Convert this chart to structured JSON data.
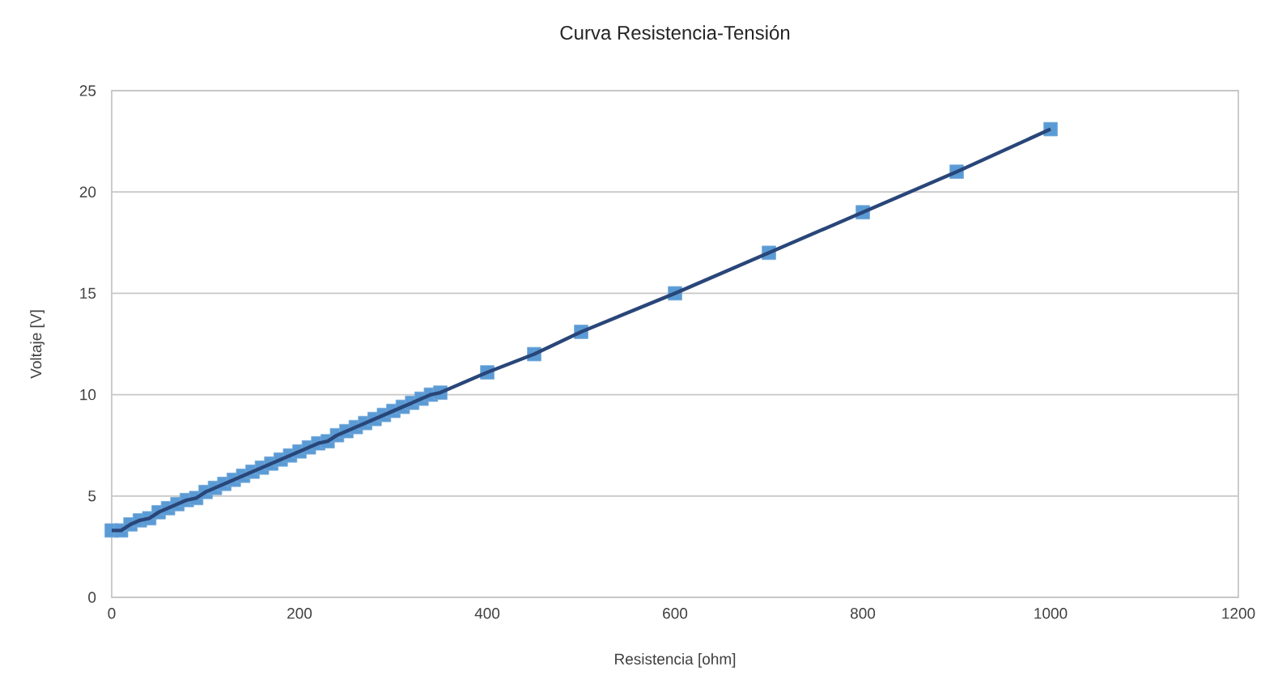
{
  "chart_data": {
    "type": "line",
    "title": "Curva Resistencia-Tensión",
    "xlabel": "Resistencia [ohm]",
    "ylabel": "Voltaje [V]",
    "x": [
      0,
      10,
      20,
      30,
      40,
      50,
      60,
      70,
      80,
      90,
      100,
      110,
      120,
      130,
      140,
      150,
      160,
      170,
      180,
      190,
      200,
      210,
      220,
      230,
      240,
      250,
      260,
      270,
      280,
      290,
      300,
      310,
      320,
      330,
      340,
      350,
      400,
      450,
      500,
      600,
      700,
      800,
      900,
      1000
    ],
    "series": [
      {
        "color": "#5b9bd5",
        "values": [
          3.3,
          3.3,
          3.6,
          3.8,
          3.9,
          4.2,
          4.4,
          4.6,
          4.8,
          4.9,
          5.2,
          5.4,
          5.6,
          5.8,
          6.0,
          6.2,
          6.4,
          6.6,
          6.8,
          7.0,
          7.2,
          7.4,
          7.6,
          7.7,
          8.0,
          8.2,
          8.4,
          8.6,
          8.8,
          9.0,
          9.2,
          9.4,
          9.6,
          9.8,
          10.0,
          10.1,
          11.1,
          12.0,
          13.1,
          15.0,
          17.0,
          19.0,
          21.0,
          23.1
        ]
      }
    ],
    "xlim": [
      0,
      1200
    ],
    "xticks": [
      0,
      200,
      400,
      600,
      800,
      1000,
      1200
    ],
    "ylim": [
      0,
      25
    ],
    "yticks": [
      0,
      5,
      10,
      15,
      20,
      25
    ],
    "grid": "y",
    "marker": "square",
    "line_style": "solid"
  }
}
